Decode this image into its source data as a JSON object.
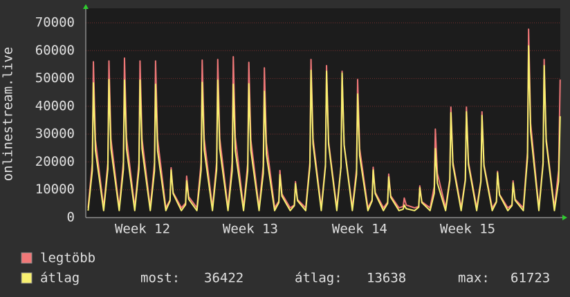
{
  "chart_data": {
    "type": "line",
    "y_label": "onlinestream.live",
    "xlim": [
      0,
      30.53
    ],
    "xticks": [
      {
        "value": 3.65,
        "label": "Week 12"
      },
      {
        "value": 10.59,
        "label": "Week 13"
      },
      {
        "value": 17.62,
        "label": "Week 14"
      },
      {
        "value": 24.57,
        "label": "Week 15"
      }
    ],
    "ylim": [
      0,
      70000
    ],
    "yticks": [
      0,
      10000,
      20000,
      30000,
      40000,
      50000,
      60000,
      70000
    ],
    "grid": true,
    "x": [
      0.15,
      0.42,
      0.49,
      0.62,
      1.15,
      1.42,
      1.49,
      1.62,
      2.15,
      2.42,
      2.49,
      2.62,
      3.15,
      3.42,
      3.49,
      3.62,
      4.15,
      4.42,
      4.49,
      4.62,
      5.15,
      5.42,
      5.49,
      5.62,
      6.15,
      6.42,
      6.49,
      6.62,
      7.15,
      7.42,
      7.49,
      7.62,
      8.15,
      8.42,
      8.49,
      8.62,
      9.15,
      9.42,
      9.49,
      9.62,
      10.15,
      10.42,
      10.49,
      10.62,
      11.15,
      11.42,
      11.49,
      11.62,
      12.15,
      12.42,
      12.49,
      12.62,
      13.15,
      13.42,
      13.49,
      13.62,
      14.15,
      14.42,
      14.49,
      14.62,
      15.15,
      15.42,
      15.49,
      15.62,
      16.15,
      16.42,
      16.49,
      16.62,
      17.15,
      17.42,
      17.49,
      17.62,
      18.15,
      18.42,
      18.49,
      18.62,
      19.15,
      19.42,
      19.49,
      19.62,
      20.15,
      20.42,
      20.49,
      20.62,
      21.15,
      21.42,
      21.49,
      21.62,
      22.15,
      22.42,
      22.49,
      22.62,
      23.15,
      23.42,
      23.49,
      23.62,
      24.15,
      24.42,
      24.49,
      24.62,
      25.15,
      25.42,
      25.49,
      25.62,
      26.15,
      26.42,
      26.49,
      26.62,
      27.15,
      27.42,
      27.49,
      27.62,
      28.15,
      28.42,
      28.49,
      28.62,
      29.15,
      29.42,
      29.49,
      29.62,
      30.15,
      30.42,
      30.52
    ],
    "series": [
      {
        "name": "legtöbb",
        "color": "#f07878",
        "values": [
          3500,
          19600,
          56000,
          28000,
          3500,
          19700,
          56300,
          28200,
          3500,
          20100,
          57300,
          28700,
          3500,
          19700,
          56300,
          28200,
          3500,
          19700,
          56300,
          28200,
          3500,
          6300,
          17900,
          9000,
          3500,
          5200,
          14900,
          7500,
          3500,
          19800,
          56600,
          28300,
          3500,
          19900,
          56800,
          28400,
          3500,
          20200,
          57800,
          28900,
          3500,
          19500,
          55800,
          27900,
          3500,
          18800,
          53800,
          26900,
          3500,
          5900,
          16900,
          8500,
          3500,
          4500,
          12900,
          6500,
          3500,
          19900,
          56800,
          28400,
          3500,
          19100,
          54600,
          27300,
          3500,
          18400,
          52600,
          26300,
          3500,
          17400,
          49600,
          24800,
          3500,
          6300,
          18100,
          9100,
          3500,
          5500,
          15600,
          7800,
          3500,
          4000,
          7000,
          4500,
          3500,
          4000,
          11400,
          5700,
          3500,
          11100,
          31800,
          15900,
          3500,
          13900,
          39700,
          19900,
          3500,
          13900,
          39700,
          19900,
          3500,
          13300,
          38000,
          19000,
          3500,
          5800,
          16600,
          8300,
          3500,
          4600,
          13200,
          6600,
          3500,
          23700,
          67700,
          33900,
          3500,
          19900,
          56800,
          28400,
          3500,
          17000,
          49600
        ]
      },
      {
        "name": "átlag",
        "color": "#f8f070",
        "values": [
          2500,
          16900,
          48400,
          24200,
          2500,
          17400,
          49600,
          24800,
          2500,
          17300,
          49400,
          24700,
          2500,
          17300,
          49400,
          24700,
          2500,
          16800,
          47900,
          24000,
          2500,
          6000,
          17100,
          8600,
          2500,
          4600,
          13200,
          6600,
          2500,
          17000,
          48600,
          24300,
          2500,
          17300,
          49400,
          24700,
          2500,
          16800,
          47900,
          24000,
          2500,
          16800,
          48100,
          24100,
          2500,
          15900,
          45400,
          22700,
          2500,
          5400,
          15400,
          7700,
          2500,
          4300,
          12200,
          6100,
          2500,
          18500,
          52900,
          26500,
          2500,
          18400,
          52600,
          26300,
          2500,
          18200,
          51900,
          26000,
          2500,
          15500,
          44400,
          22200,
          2500,
          6000,
          17100,
          8600,
          2500,
          5100,
          14600,
          7300,
          2500,
          3000,
          4500,
          3200,
          2500,
          3700,
          10700,
          5400,
          2500,
          8700,
          24800,
          12400,
          2500,
          13200,
          37700,
          18900,
          2500,
          13300,
          38000,
          19000,
          2500,
          12800,
          36700,
          18400,
          2500,
          5600,
          16100,
          8100,
          2500,
          4300,
          12400,
          6200,
          2500,
          21600,
          61723,
          30900,
          2500,
          19100,
          54600,
          27300,
          2500,
          13000,
          36422
        ]
      }
    ],
    "stats": [
      {
        "label": "most:",
        "value": 36422
      },
      {
        "label": "átlag:",
        "value": 13638
      },
      {
        "label": "max:",
        "value": 61723
      }
    ]
  }
}
